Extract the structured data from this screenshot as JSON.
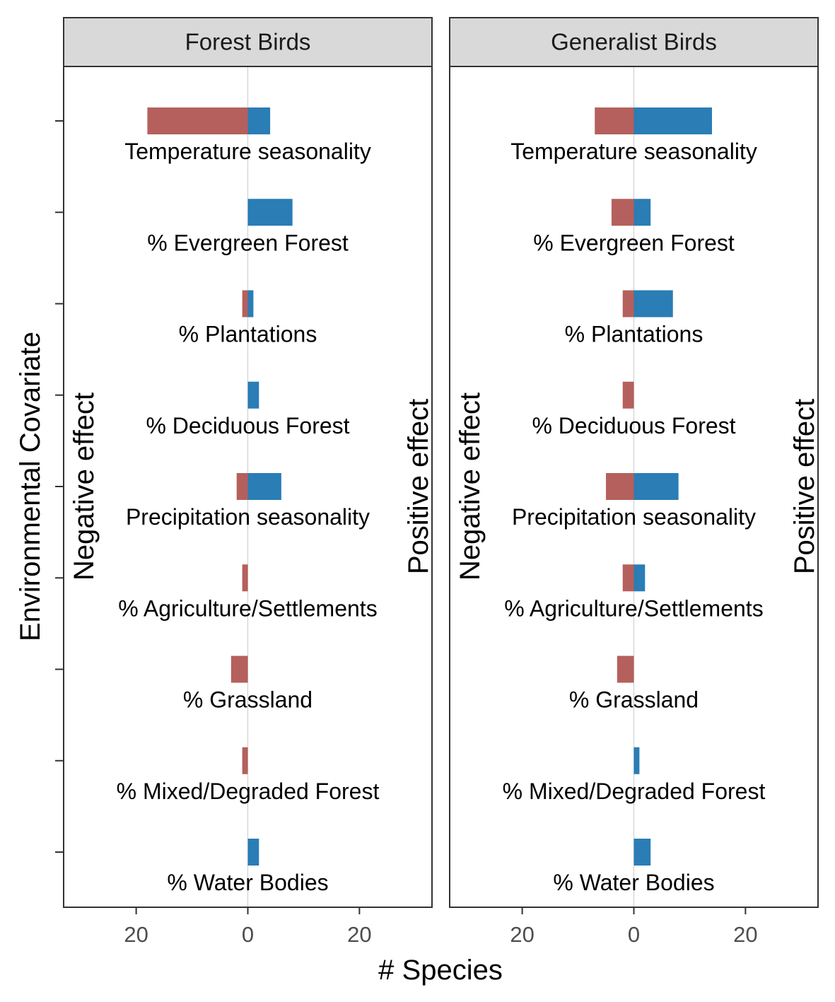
{
  "chart_data": {
    "type": "bar",
    "orientation": "horizontal",
    "facet_titles": [
      "Forest Birds",
      "Generalist Birds"
    ],
    "categories": [
      "Temperature seasonality",
      "% Evergreen Forest",
      "% Plantations",
      "% Deciduous Forest",
      "Precipitation seasonality",
      "% Agriculture/Settlements",
      "% Grassland",
      "% Mixed/Degraded Forest",
      "% Water Bodies"
    ],
    "panels": [
      {
        "title": "Forest Birds",
        "negative": [
          18,
          0,
          1,
          0,
          2,
          1,
          3,
          1,
          0
        ],
        "positive": [
          4,
          8,
          1,
          2,
          6,
          0,
          0,
          0,
          2
        ]
      },
      {
        "title": "Generalist Birds",
        "negative": [
          7,
          4,
          2,
          2,
          5,
          2,
          3,
          0,
          0
        ],
        "positive": [
          14,
          3,
          7,
          0,
          8,
          2,
          0,
          1,
          3
        ]
      }
    ],
    "xlim": [
      -33,
      33
    ],
    "x_ticks": [
      -20,
      0,
      20
    ],
    "x_tick_labels": [
      "20",
      "0",
      "20"
    ],
    "xlabel": "# Species",
    "ylabel": "Environmental Covariate",
    "negative_label": "Negative effect",
    "positive_label": "Positive effect",
    "colors": {
      "negative": "#b5605c",
      "positive": "#2a7db5",
      "strip": "#d9d9d9",
      "zero_line": "#cccccc"
    }
  }
}
